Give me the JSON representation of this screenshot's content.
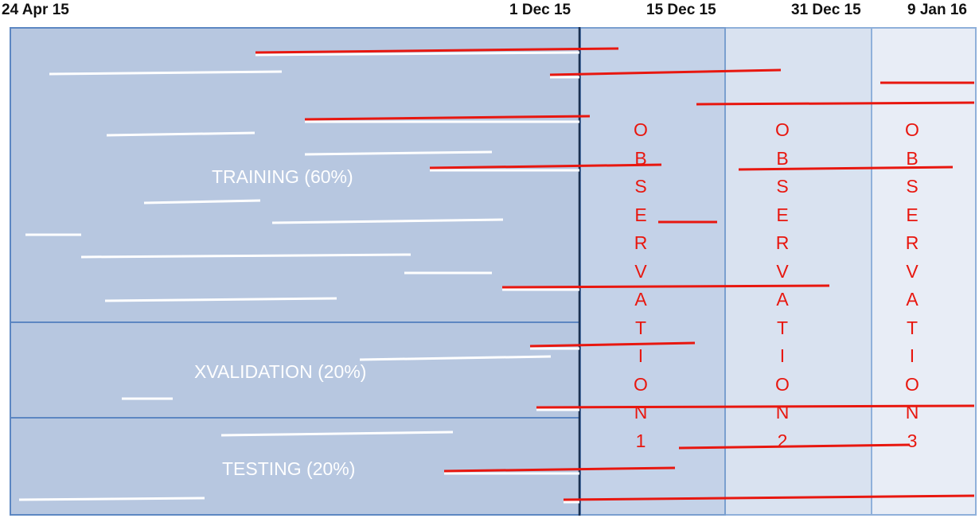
{
  "dates": [
    "24 Apr 15",
    "1 Dec 15",
    "15 Dec 15",
    "31 Dec 15",
    "9 Jan 16"
  ],
  "splits": [
    "TRAINING (60%)",
    "XVALIDATION (20%)",
    "TESTING (20%)"
  ],
  "observation_windows": [
    [
      "O",
      "B",
      "S",
      "E",
      "R",
      "V",
      "A",
      "T",
      "I",
      "O",
      "N",
      "1"
    ],
    [
      "O",
      "B",
      "S",
      "E",
      "R",
      "V",
      "A",
      "T",
      "I",
      "O",
      "N",
      "2"
    ],
    [
      "O",
      "B",
      "S",
      "E",
      "R",
      "V",
      "A",
      "T",
      "I",
      "O",
      "N",
      "3"
    ]
  ],
  "colors": {
    "training_fill": "#b7c7e0",
    "obs1_fill": "#c4d2e8",
    "obs2_fill": "#d9e2f0",
    "obs3_fill": "#e8edf6",
    "border": "#5d87c2",
    "cutoff_line": "#1a3050",
    "segment_white": "#ffffff",
    "segment_red": "#e8170f",
    "observation_text": "#e8170f"
  }
}
